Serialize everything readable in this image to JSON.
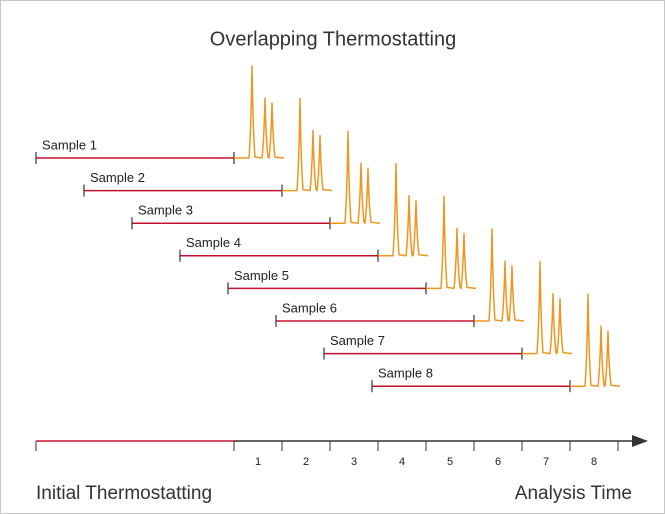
{
  "title": "Overlapping Thermostatting",
  "samples": [
    "Sample 1",
    "Sample 2",
    "Sample 3",
    "Sample 4",
    "Sample 5",
    "Sample 6",
    "Sample 7",
    "Sample 8"
  ],
  "axis": {
    "slots": [
      "1",
      "2",
      "3",
      "4",
      "5",
      "6",
      "7",
      "8"
    ],
    "left_label": "Initial Thermostatting",
    "right_label": "Analysis Time"
  }
}
